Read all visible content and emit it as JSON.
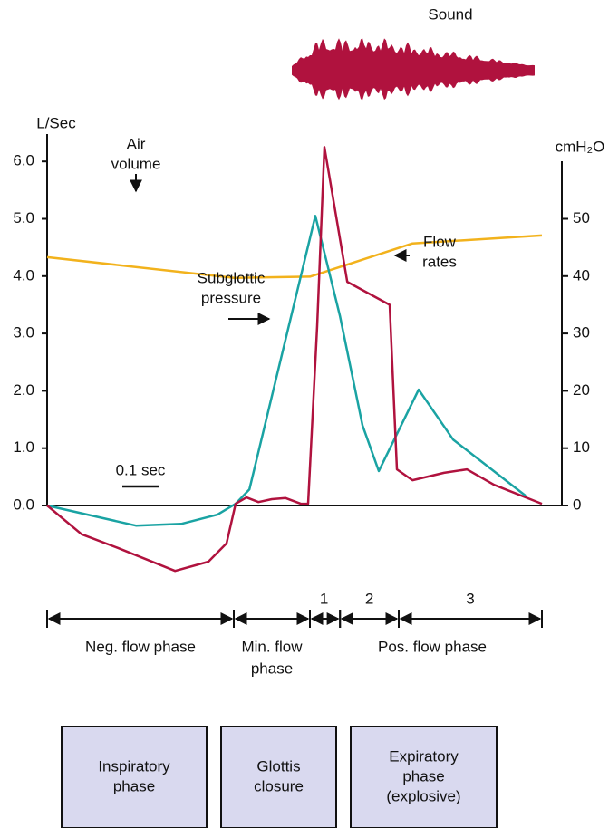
{
  "chart_data": {
    "type": "line",
    "sound_label": "Sound",
    "y_label": "L/Sec",
    "y2_label": "cmH₂O",
    "xlim": [
      0,
      1.365
    ],
    "ylim": [
      -1.2,
      6.3
    ],
    "y2lim": [
      -12,
      63
    ],
    "yticks": [
      {
        "value": 0,
        "label": "0.0"
      },
      {
        "value": 1,
        "label": "1.0"
      },
      {
        "value": 2,
        "label": "2.0"
      },
      {
        "value": 3,
        "label": "3.0"
      },
      {
        "value": 4,
        "label": "4.0"
      },
      {
        "value": 5,
        "label": "5.0"
      },
      {
        "value": 6,
        "label": "6.0"
      }
    ],
    "y2ticks": [
      0,
      10,
      20,
      30,
      40,
      50
    ],
    "series": [
      {
        "name": "Air volume",
        "color": "#f2b21c",
        "axis": "y",
        "x": [
          0,
          0.515,
          0.725,
          1.008,
          1.365
        ],
        "values": [
          4.33,
          3.97,
          3.99,
          4.57,
          4.71
        ]
      },
      {
        "name": "Subglottic pressure",
        "color": "#1aa3a3",
        "axis": "y2",
        "x": [
          0,
          0.245,
          0.37,
          0.47,
          0.52,
          0.558,
          0.74,
          0.808,
          0.87,
          0.915,
          1.025,
          1.12,
          1.32
        ],
        "values": [
          0,
          -3.5,
          -3.2,
          -1.6,
          0.3,
          2.8,
          50.5,
          33,
          14,
          6,
          20.2,
          11.5,
          1.7
        ]
      },
      {
        "name": "Flow rates",
        "color": "#b0123e",
        "axis": "y",
        "x": [
          0,
          0.095,
          0.195,
          0.353,
          0.445,
          0.495,
          0.52,
          0.55,
          0.583,
          0.62,
          0.658,
          0.7,
          0.72,
          0.745,
          0.765,
          0.828,
          0.945,
          0.965,
          1.008,
          1.095,
          1.158,
          1.233,
          1.365
        ],
        "values": [
          0,
          -0.5,
          -0.74,
          -1.14,
          -0.98,
          -0.66,
          0.03,
          0.14,
          0.06,
          0.11,
          0.13,
          0.03,
          0.03,
          3.13,
          6.25,
          3.9,
          3.5,
          0.63,
          0.44,
          0.57,
          0.63,
          0.36,
          0.03
        ]
      }
    ],
    "annotations": [
      [
        "Air",
        "volume"
      ],
      [
        "Subglottic",
        "pressure"
      ],
      [
        "Flow",
        "rates"
      ]
    ],
    "scale_bar": {
      "value": 0.1,
      "label": "0.1 sec"
    },
    "phases": [
      {
        "label": [
          "Neg. flow phase"
        ],
        "start": 0,
        "end": 0.515
      },
      {
        "label": [
          "Min. flow",
          "phase"
        ],
        "start": 0.515,
        "end": 0.725
      },
      {
        "label": [
          "Pos. flow phase"
        ],
        "start": 0.725,
        "end": 1.365
      }
    ],
    "subphases": [
      {
        "label": "1",
        "start": 0.725,
        "end": 0.808
      },
      {
        "label": "2",
        "start": 0.808,
        "end": 0.97
      },
      {
        "label": "3",
        "start": 0.97,
        "end": 1.365
      }
    ],
    "boxes": [
      [
        "Inspiratory",
        "phase"
      ],
      [
        "Glottis",
        "closure"
      ],
      [
        "Expiratory",
        "phase",
        "(explosive)"
      ]
    ]
  }
}
